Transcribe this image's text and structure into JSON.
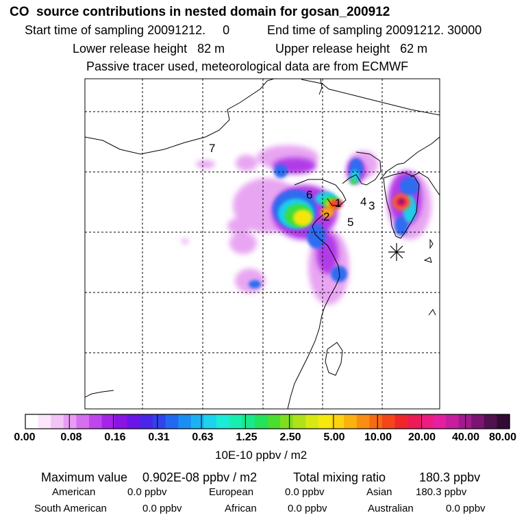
{
  "header": {
    "title": "CO  source contributions in nested domain for gosan_200912",
    "start_label": "Start time of sampling 20091212.     0",
    "end_label": "End time of sampling 20091212. 30000",
    "lower_label": "Lower release height   82 m",
    "upper_label": "Upper release height   62 m",
    "note": "Passive tracer used, meteorological data are from ECMWF"
  },
  "chart_data": {
    "type": "heatmap",
    "title": "CO  source contributions in nested domain for gosan_200912",
    "colorbar": {
      "tick_labels": [
        "0.00",
        "0.08",
        "0.16",
        "0.31",
        "0.63",
        "1.25",
        "2.50",
        "5.00",
        "10.00",
        "20.00",
        "40.00",
        "80.00"
      ],
      "units": "10E-10 ppbv / m2",
      "colors": [
        "#ffffff",
        "#fbe6fb",
        "#f3c3f6",
        "#e99cf3",
        "#d66ef0",
        "#bf45ec",
        "#a623e8",
        "#8a13e6",
        "#6a16e8",
        "#4a26ea",
        "#3143ed",
        "#2368f0",
        "#1a8ef2",
        "#1ab2f1",
        "#1cd4ec",
        "#1aecd8",
        "#19eeb2",
        "#19e98a",
        "#23e25b",
        "#4cde2e",
        "#7fde1f",
        "#b0e218",
        "#d8e812",
        "#f5e90f",
        "#fbd30f",
        "#fbb20f",
        "#fa8e12",
        "#f76a15",
        "#f44619",
        "#f1262a",
        "#ee1a55",
        "#ec1c80",
        "#e51ea2",
        "#c81d9e",
        "#a21b8e",
        "#7a1672",
        "#52104f",
        "#330a33"
      ]
    },
    "source_labels": [
      "1",
      "2",
      "3",
      "4",
      "5",
      "6",
      "7"
    ],
    "receptor_marker": "star",
    "grid": true
  },
  "stats": {
    "max_label": "Maximum value",
    "max_value": "0.902E-08 ppbv / m2",
    "total_label": "Total mixing ratio",
    "total_value": "180.3 ppbv",
    "regions": [
      {
        "name": "American",
        "value": "0.0 ppbv"
      },
      {
        "name": "European",
        "value": "0.0 ppbv"
      },
      {
        "name": "Asian",
        "value": "180.3 ppbv"
      },
      {
        "name": "South American",
        "value": "0.0 ppbv"
      },
      {
        "name": "African",
        "value": "0.0 ppbv"
      },
      {
        "name": "Australian",
        "value": "0.0 ppbv"
      }
    ]
  }
}
